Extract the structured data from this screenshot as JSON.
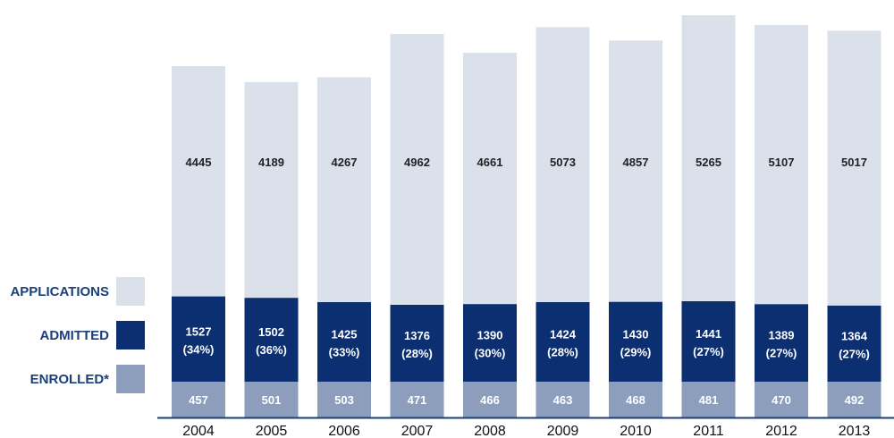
{
  "chart_data": {
    "type": "bar",
    "stacked": false,
    "categories": [
      "2004",
      "2005",
      "2006",
      "2007",
      "2008",
      "2009",
      "2010",
      "2011",
      "2012",
      "2013"
    ],
    "series": [
      {
        "name": "APPLICATIONS",
        "values": [
          4445,
          4189,
          4267,
          4962,
          4661,
          5073,
          4857,
          5265,
          5107,
          5017
        ],
        "color": "#dbe1eb"
      },
      {
        "name": "ADMITTED",
        "values": [
          1527,
          1502,
          1425,
          1376,
          1390,
          1424,
          1430,
          1441,
          1389,
          1364
        ],
        "color": "#0c2f72"
      },
      {
        "name": "ENROLLED*",
        "values": [
          457,
          501,
          503,
          471,
          466,
          463,
          468,
          481,
          470,
          492
        ],
        "color": "#8d9ebd"
      }
    ],
    "bar_labels": {
      "applications": [
        "4445",
        "4189",
        "4267",
        "4962",
        "4661",
        "5073",
        "4857",
        "5265",
        "5107",
        "5017"
      ],
      "admitted": [
        "1527",
        "1502",
        "1425",
        "1376",
        "1390",
        "1424",
        "1430",
        "1441",
        "1389",
        "1364"
      ],
      "admitted_pct": [
        "(34%)",
        "(36%)",
        "(33%)",
        "(28%)",
        "(30%)",
        "(28%)",
        "(29%)",
        "(27%)",
        "(27%)",
        "(27%)"
      ],
      "enrolled": [
        "457",
        "501",
        "503",
        "471",
        "466",
        "463",
        "468",
        "481",
        "470",
        "492"
      ]
    },
    "legend": {
      "placement": "left",
      "items": [
        {
          "label": "APPLICATIONS",
          "color": "#dbe1eb"
        },
        {
          "label": "ADMITTED",
          "color": "#0c2f72"
        },
        {
          "label": "ENROLLED*",
          "color": "#8d9ebd"
        }
      ]
    },
    "title": "",
    "xlabel": "",
    "ylabel": "",
    "grid": false,
    "axis_color": "#1a3f7a"
  }
}
